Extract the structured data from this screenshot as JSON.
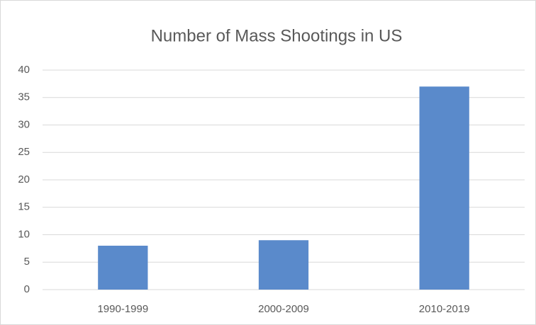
{
  "chart_data": {
    "type": "bar",
    "title": "Number of Mass Shootings in US",
    "categories": [
      "1990-1999",
      "2000-2009",
      "2010-2019"
    ],
    "values": [
      8,
      9,
      37
    ],
    "color": "#5a8acb",
    "ylim": [
      0,
      40
    ],
    "yticks": [
      0,
      5,
      10,
      15,
      20,
      25,
      30,
      35,
      40
    ],
    "grid": true
  }
}
